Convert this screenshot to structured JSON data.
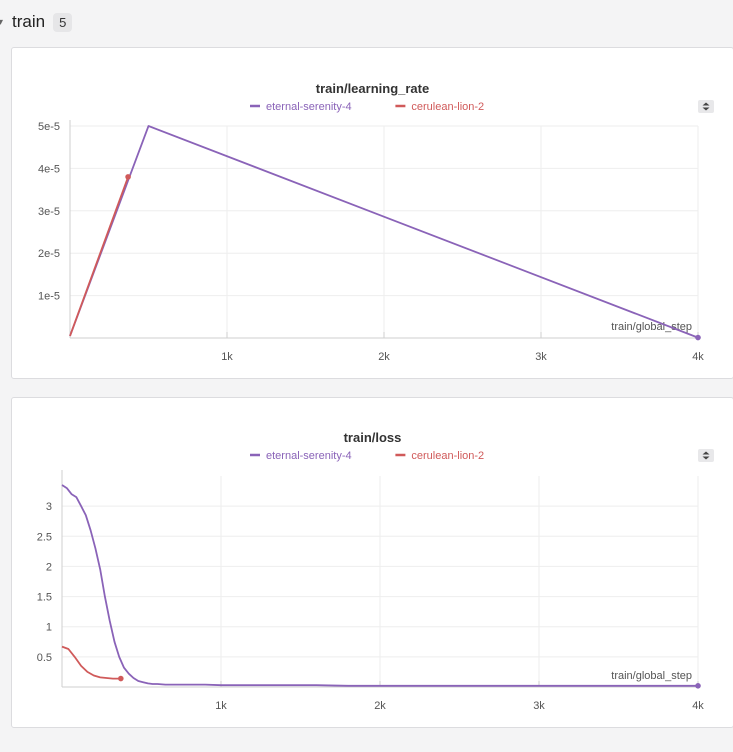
{
  "section": {
    "title": "train",
    "count": "5"
  },
  "colors": {
    "purple": "#8a63b8",
    "red": "#d05a5a"
  },
  "panels": [
    {
      "chart_data": {
        "type": "line",
        "title": "train/learning_rate",
        "xlabel": "train/global_step",
        "ylabel": "",
        "legend_placement": "top-center",
        "grid": true,
        "xlim": [
          0,
          4000
        ],
        "ylim": [
          0,
          5e-05
        ],
        "xticks": [
          1000,
          2000,
          3000,
          4000
        ],
        "xtick_labels": [
          "1k",
          "2k",
          "3k",
          "4k"
        ],
        "yticks": [
          1e-05,
          2e-05,
          3e-05,
          4e-05,
          5e-05
        ],
        "ytick_labels": [
          "1e-5",
          "2e-5",
          "3e-5",
          "4e-5",
          "5e-5"
        ],
        "series": [
          {
            "name": "eternal-serenity-4",
            "color": "#8a63b8",
            "x": [
              0,
              500,
              4000
            ],
            "y": [
              5e-07,
              5e-05,
              1e-07
            ]
          },
          {
            "name": "cerulean-lion-2",
            "color": "#d05a5a",
            "x": [
              0,
              370
            ],
            "y": [
              5e-07,
              3.8e-05
            ]
          }
        ]
      }
    },
    {
      "chart_data": {
        "type": "line",
        "title": "train/loss",
        "xlabel": "train/global_step",
        "ylabel": "",
        "legend_placement": "top-center",
        "grid": true,
        "xlim": [
          0,
          4000
        ],
        "ylim": [
          0,
          3.5
        ],
        "xticks": [
          1000,
          2000,
          3000,
          4000
        ],
        "xtick_labels": [
          "1k",
          "2k",
          "3k",
          "4k"
        ],
        "yticks": [
          0.5,
          1,
          1.5,
          2,
          2.5,
          3
        ],
        "ytick_labels": [
          "0.5",
          "1",
          "1.5",
          "2",
          "2.5",
          "3"
        ],
        "series": [
          {
            "name": "eternal-serenity-4",
            "color": "#8a63b8",
            "x": [
              0,
              30,
              60,
              90,
              120,
              150,
              180,
              210,
              240,
              270,
              300,
              330,
              360,
              390,
              420,
              450,
              480,
              510,
              540,
              570,
              600,
              650,
              700,
              800,
              900,
              1000,
              1100,
              1200,
              1400,
              1600,
              1800,
              2000,
              2200,
              2400,
              2600,
              2800,
              3000,
              3200,
              3400,
              3600,
              3800,
              4000
            ],
            "y": [
              3.35,
              3.3,
              3.2,
              3.15,
              3.0,
              2.85,
              2.6,
              2.3,
              1.95,
              1.5,
              1.1,
              0.75,
              0.5,
              0.32,
              0.22,
              0.15,
              0.1,
              0.08,
              0.06,
              0.05,
              0.05,
              0.04,
              0.04,
              0.04,
              0.04,
              0.03,
              0.03,
              0.03,
              0.03,
              0.03,
              0.02,
              0.02,
              0.02,
              0.02,
              0.02,
              0.02,
              0.02,
              0.02,
              0.02,
              0.02,
              0.02,
              0.02
            ]
          },
          {
            "name": "cerulean-lion-2",
            "color": "#d05a5a",
            "x": [
              0,
              40,
              80,
              120,
              160,
              200,
              240,
              280,
              320,
              370
            ],
            "y": [
              0.67,
              0.63,
              0.5,
              0.35,
              0.25,
              0.19,
              0.16,
              0.15,
              0.14,
              0.14
            ]
          }
        ]
      }
    }
  ]
}
